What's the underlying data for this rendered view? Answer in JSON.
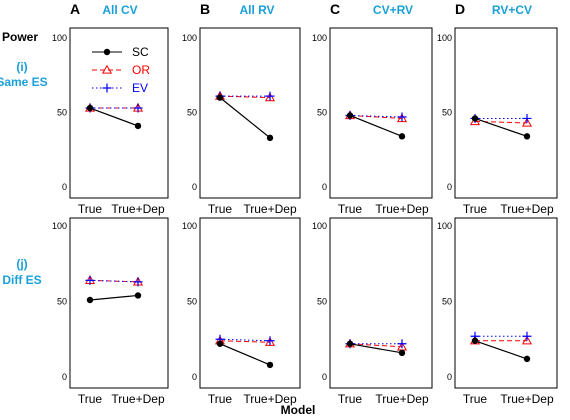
{
  "ylabel": "Power",
  "xlabel": "Model",
  "columns": [
    {
      "letter": "A",
      "title": "All CV"
    },
    {
      "letter": "B",
      "title": "All RV"
    },
    {
      "letter": "C",
      "title": "CV+RV"
    },
    {
      "letter": "D",
      "title": "RV+CV"
    }
  ],
  "rows": [
    {
      "num": "(i)",
      "label": "Same ES"
    },
    {
      "num": "(j)",
      "label": "Diff ES"
    }
  ],
  "legend": [
    {
      "key": "SC",
      "label": "SC",
      "color": "#000000",
      "marker": "filled-circle",
      "line": "solid"
    },
    {
      "key": "OR",
      "label": "OR",
      "color": "#ff0000",
      "marker": "open-triangle",
      "line": "dashed"
    },
    {
      "key": "EV",
      "label": "EV",
      "color": "#0000ff",
      "marker": "plus",
      "line": "dotted"
    }
  ],
  "chart_data": [
    {
      "type": "line",
      "panel": "A-i",
      "categories": [
        "True",
        "True+Dep"
      ],
      "ylim": [
        0,
        100
      ],
      "yticks": [
        "0",
        "50",
        "100"
      ],
      "series": [
        {
          "name": "SC",
          "values": [
            53,
            41
          ]
        },
        {
          "name": "OR",
          "values": [
            53,
            53
          ]
        },
        {
          "name": "EV",
          "values": [
            53,
            53
          ]
        }
      ]
    },
    {
      "type": "line",
      "panel": "B-i",
      "categories": [
        "True",
        "True+Dep"
      ],
      "ylim": [
        0,
        100
      ],
      "yticks": [
        "0",
        "50",
        "100"
      ],
      "series": [
        {
          "name": "SC",
          "values": [
            60,
            33
          ]
        },
        {
          "name": "OR",
          "values": [
            61,
            60
          ]
        },
        {
          "name": "EV",
          "values": [
            61,
            61
          ]
        }
      ]
    },
    {
      "type": "line",
      "panel": "C-i",
      "categories": [
        "True",
        "True+Dep"
      ],
      "ylim": [
        0,
        100
      ],
      "yticks": [
        "0",
        "50",
        "100"
      ],
      "series": [
        {
          "name": "SC",
          "values": [
            48,
            34
          ]
        },
        {
          "name": "OR",
          "values": [
            48,
            46
          ]
        },
        {
          "name": "EV",
          "values": [
            48,
            47
          ]
        }
      ]
    },
    {
      "type": "line",
      "panel": "D-i",
      "categories": [
        "True",
        "True+Dep"
      ],
      "ylim": [
        0,
        100
      ],
      "yticks": [
        "0",
        "50",
        "100"
      ],
      "series": [
        {
          "name": "SC",
          "values": [
            46,
            34
          ]
        },
        {
          "name": "OR",
          "values": [
            44,
            43
          ]
        },
        {
          "name": "EV",
          "values": [
            46,
            46
          ]
        }
      ]
    },
    {
      "type": "line",
      "panel": "A-j",
      "categories": [
        "True",
        "True+Dep"
      ],
      "ylim": [
        0,
        100
      ],
      "yticks": [
        "0",
        "50",
        "100"
      ],
      "series": [
        {
          "name": "SC",
          "values": [
            51,
            54
          ]
        },
        {
          "name": "OR",
          "values": [
            64,
            63
          ]
        },
        {
          "name": "EV",
          "values": [
            64,
            63
          ]
        }
      ]
    },
    {
      "type": "line",
      "panel": "B-j",
      "categories": [
        "True",
        "True+Dep"
      ],
      "ylim": [
        0,
        100
      ],
      "yticks": [
        "0",
        "50",
        "100"
      ],
      "series": [
        {
          "name": "SC",
          "values": [
            22,
            8
          ]
        },
        {
          "name": "OR",
          "values": [
            24,
            23
          ]
        },
        {
          "name": "EV",
          "values": [
            25,
            24
          ]
        }
      ]
    },
    {
      "type": "line",
      "panel": "C-j",
      "categories": [
        "True",
        "True+Dep"
      ],
      "ylim": [
        0,
        100
      ],
      "yticks": [
        "0",
        "50",
        "100"
      ],
      "series": [
        {
          "name": "SC",
          "values": [
            22,
            16
          ]
        },
        {
          "name": "OR",
          "values": [
            22,
            20
          ]
        },
        {
          "name": "EV",
          "values": [
            22,
            22
          ]
        }
      ]
    },
    {
      "type": "line",
      "panel": "D-j",
      "categories": [
        "True",
        "True+Dep"
      ],
      "ylim": [
        0,
        100
      ],
      "yticks": [
        "0",
        "50",
        "100"
      ],
      "series": [
        {
          "name": "SC",
          "values": [
            24,
            12
          ]
        },
        {
          "name": "OR",
          "values": [
            24,
            24
          ]
        },
        {
          "name": "EV",
          "values": [
            27,
            27
          ]
        }
      ]
    }
  ]
}
